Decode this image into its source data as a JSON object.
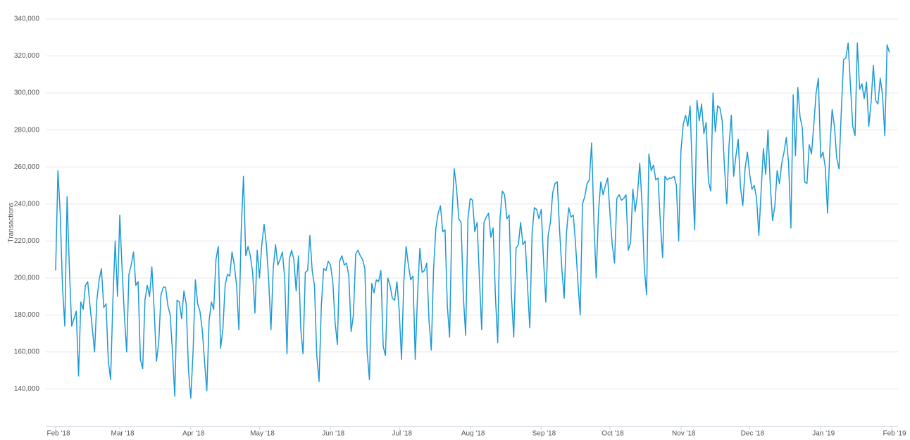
{
  "chart_data": {
    "type": "line",
    "y_label": "Transactions",
    "color": "#1c9ad6",
    "grid": true,
    "ylim": [
      120000,
      340000
    ],
    "yticks": [
      {
        "value": 140000,
        "label": "140,000"
      },
      {
        "value": 160000,
        "label": "160,000"
      },
      {
        "value": 180000,
        "label": "180,000"
      },
      {
        "value": 200000,
        "label": "200,000"
      },
      {
        "value": 220000,
        "label": "220,000"
      },
      {
        "value": 240000,
        "label": "240,000"
      },
      {
        "value": 260000,
        "label": "260,000"
      },
      {
        "value": 280000,
        "label": "280,000"
      },
      {
        "value": 300000,
        "label": "300,000"
      },
      {
        "value": 320000,
        "label": "320,000"
      },
      {
        "value": 340000,
        "label": "340,000"
      }
    ],
    "categories": [
      "Feb '18",
      null,
      null,
      null,
      null,
      null,
      null,
      null,
      null,
      null,
      null,
      null,
      null,
      null,
      null,
      null,
      null,
      null,
      null,
      null,
      null,
      null,
      null,
      null,
      null,
      null,
      null,
      null,
      "Mar '18",
      null,
      null,
      null,
      null,
      null,
      null,
      null,
      null,
      null,
      null,
      null,
      null,
      null,
      null,
      null,
      null,
      null,
      null,
      null,
      null,
      null,
      null,
      null,
      null,
      null,
      null,
      null,
      null,
      null,
      null,
      "Apr '18",
      null,
      null,
      null,
      null,
      null,
      null,
      null,
      null,
      null,
      null,
      null,
      null,
      null,
      null,
      null,
      null,
      null,
      null,
      null,
      null,
      null,
      null,
      null,
      null,
      null,
      null,
      null,
      null,
      null,
      "May '18",
      null,
      null,
      null,
      null,
      null,
      null,
      null,
      null,
      null,
      null,
      null,
      null,
      null,
      null,
      null,
      null,
      null,
      null,
      null,
      null,
      null,
      null,
      null,
      null,
      null,
      null,
      null,
      null,
      null,
      null,
      "Jun '18",
      null,
      null,
      null,
      null,
      null,
      null,
      null,
      null,
      null,
      null,
      null,
      null,
      null,
      null,
      null,
      null,
      null,
      null,
      null,
      null,
      null,
      null,
      null,
      null,
      null,
      null,
      null,
      null,
      null,
      "Jul '18",
      null,
      null,
      null,
      null,
      null,
      null,
      null,
      null,
      null,
      null,
      null,
      null,
      null,
      null,
      null,
      null,
      null,
      null,
      null,
      null,
      null,
      null,
      null,
      null,
      null,
      null,
      null,
      null,
      null,
      null,
      "Aug '18",
      null,
      null,
      null,
      null,
      null,
      null,
      null,
      null,
      null,
      null,
      null,
      null,
      null,
      null,
      null,
      null,
      null,
      null,
      null,
      null,
      null,
      null,
      null,
      null,
      null,
      null,
      null,
      null,
      null,
      null,
      "Sep '18",
      null,
      null,
      null,
      null,
      null,
      null,
      null,
      null,
      null,
      null,
      null,
      null,
      null,
      null,
      null,
      null,
      null,
      null,
      null,
      null,
      null,
      null,
      null,
      null,
      null,
      null,
      null,
      null,
      null,
      "Oct '18",
      null,
      null,
      null,
      null,
      null,
      null,
      null,
      null,
      null,
      null,
      null,
      null,
      null,
      null,
      null,
      null,
      null,
      null,
      null,
      null,
      null,
      null,
      null,
      null,
      null,
      null,
      null,
      null,
      null,
      null,
      "Nov '18",
      null,
      null,
      null,
      null,
      null,
      null,
      null,
      null,
      null,
      null,
      null,
      null,
      null,
      null,
      null,
      null,
      null,
      null,
      null,
      null,
      null,
      null,
      null,
      null,
      null,
      null,
      null,
      null,
      null,
      "Dec '18",
      null,
      null,
      null,
      null,
      null,
      null,
      null,
      null,
      null,
      null,
      null,
      null,
      null,
      null,
      null,
      null,
      null,
      null,
      null,
      null,
      null,
      null,
      null,
      null,
      null,
      null,
      null,
      null,
      null,
      null,
      "Jan '19",
      null,
      null,
      null,
      null,
      null,
      null,
      null,
      null,
      null,
      null,
      null,
      null,
      null,
      null,
      null,
      null,
      null,
      null,
      null,
      null,
      null,
      null,
      null,
      null,
      null,
      null,
      null,
      null,
      null,
      null,
      "Feb '19"
    ],
    "values": [
      204000,
      258000,
      235000,
      195000,
      174000,
      244000,
      205000,
      174000,
      178000,
      182000,
      147000,
      187000,
      183000,
      196000,
      198000,
      185000,
      173000,
      160000,
      188000,
      199000,
      205000,
      184000,
      186000,
      155000,
      145000,
      188000,
      220000,
      190000,
      234000,
      205000,
      180000,
      160000,
      202000,
      207000,
      214000,
      196000,
      198000,
      156000,
      151000,
      188000,
      196000,
      190000,
      206000,
      183000,
      155000,
      165000,
      191000,
      195000,
      195000,
      185000,
      180000,
      160000,
      136000,
      188000,
      187000,
      178000,
      193000,
      186000,
      150000,
      135000,
      160000,
      199000,
      186000,
      182000,
      172000,
      155000,
      139000,
      177000,
      187000,
      183000,
      210000,
      217000,
      162000,
      172000,
      196000,
      202000,
      201000,
      214000,
      207000,
      196000,
      172000,
      225000,
      255000,
      212000,
      217000,
      212000,
      203000,
      181000,
      215000,
      200000,
      218000,
      229000,
      218000,
      199000,
      172000,
      205000,
      218000,
      207000,
      210000,
      214000,
      200000,
      159000,
      210000,
      215000,
      210000,
      193000,
      212000,
      173000,
      159000,
      203000,
      204000,
      223000,
      204000,
      196000,
      158000,
      144000,
      185000,
      205000,
      204000,
      209000,
      207000,
      198000,
      176000,
      164000,
      209000,
      212000,
      207000,
      208000,
      201000,
      171000,
      180000,
      213000,
      215000,
      212000,
      210000,
      205000,
      160000,
      145000,
      197000,
      192000,
      199000,
      198000,
      204000,
      163000,
      158000,
      200000,
      196000,
      189000,
      188000,
      198000,
      182000,
      156000,
      198000,
      217000,
      207000,
      199000,
      201000,
      156000,
      191000,
      216000,
      203000,
      204000,
      208000,
      177000,
      161000,
      205000,
      227000,
      235000,
      239000,
      225000,
      226000,
      185000,
      168000,
      232000,
      259000,
      249000,
      232000,
      230000,
      190000,
      169000,
      232000,
      243000,
      242000,
      225000,
      230000,
      200000,
      172000,
      230000,
      233000,
      235000,
      222000,
      227000,
      190000,
      165000,
      232000,
      247000,
      245000,
      232000,
      234000,
      190000,
      168000,
      216000,
      218000,
      230000,
      218000,
      220000,
      196000,
      173000,
      224000,
      238000,
      237000,
      232000,
      237000,
      210000,
      187000,
      223000,
      230000,
      246000,
      251000,
      252000,
      226000,
      205000,
      189000,
      224000,
      238000,
      233000,
      234000,
      218000,
      198000,
      180000,
      240000,
      244000,
      251000,
      253000,
      273000,
      230000,
      200000,
      236000,
      252000,
      245000,
      250000,
      254000,
      235000,
      218000,
      208000,
      243000,
      245000,
      242000,
      243000,
      245000,
      215000,
      219000,
      248000,
      236000,
      245000,
      262000,
      240000,
      205000,
      191000,
      267000,
      258000,
      261000,
      253000,
      254000,
      230000,
      211000,
      255000,
      253000,
      254000,
      254000,
      255000,
      250000,
      220000,
      269000,
      283000,
      288000,
      282000,
      293000,
      255000,
      226000,
      296000,
      285000,
      294000,
      278000,
      284000,
      252000,
      247000,
      300000,
      279000,
      293000,
      292000,
      285000,
      260000,
      240000,
      272000,
      288000,
      255000,
      266000,
      275000,
      249000,
      239000,
      259000,
      268000,
      256000,
      248000,
      250000,
      243000,
      223000,
      247000,
      270000,
      256000,
      280000,
      250000,
      231000,
      239000,
      258000,
      251000,
      262000,
      268000,
      276000,
      262000,
      227000,
      299000,
      266000,
      303000,
      287000,
      281000,
      252000,
      251000,
      272000,
      267000,
      283000,
      300000,
      308000,
      265000,
      268000,
      260000,
      235000,
      270000,
      291000,
      282000,
      265000,
      259000,
      290000,
      318000,
      319000,
      327000,
      304000,
      282000,
      277000,
      327000,
      302000,
      305000,
      297000,
      306000,
      282000,
      295000,
      315000,
      296000,
      294000,
      308000,
      299000,
      277000,
      326000,
      322000,
      null
    ]
  }
}
